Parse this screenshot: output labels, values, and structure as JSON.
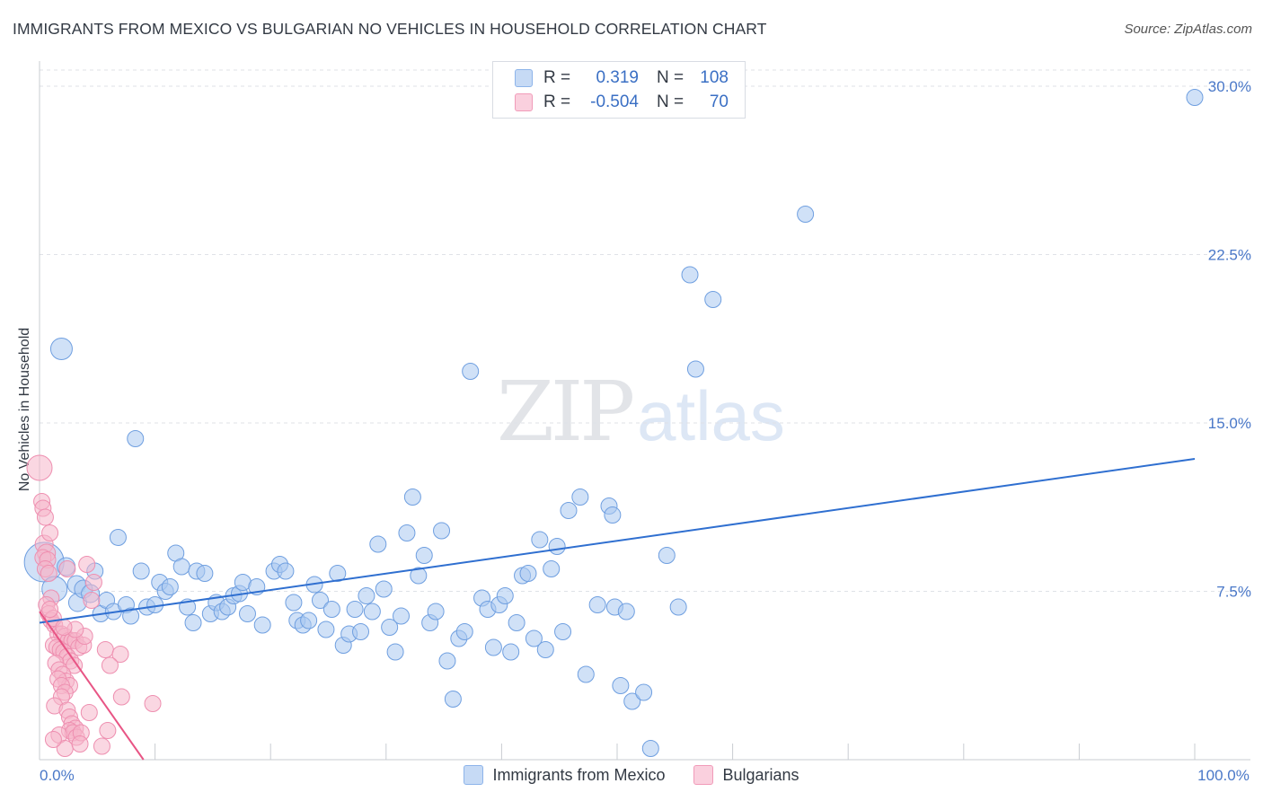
{
  "title": "IMMIGRANTS FROM MEXICO VS BULGARIAN NO VEHICLES IN HOUSEHOLD CORRELATION CHART",
  "source": "Source: ZipAtlas.com",
  "watermark": {
    "zip": "ZIP",
    "atlas": "atlas"
  },
  "legend": {
    "rows": [
      {
        "r_label": "R =",
        "r_value": "0.319",
        "n_label": "N =",
        "n_value": "108",
        "color": "#a9c8f0"
      },
      {
        "r_label": "R =",
        "r_value": "-0.504",
        "n_label": "N =",
        "n_value": "70",
        "color": "#f6b6cb"
      }
    ]
  },
  "bottom_legend": [
    "Immigrants from Mexico",
    "Bulgarians"
  ],
  "chart_data": {
    "type": "scatter",
    "ylabel": "No Vehicles in Household",
    "xlabel": "",
    "xlim": [
      0,
      100
    ],
    "ylim": [
      0,
      30
    ],
    "y_ticks": [
      {
        "value": 7.5,
        "label": "7.5%"
      },
      {
        "value": 15.0,
        "label": "15.0%"
      },
      {
        "value": 22.5,
        "label": "22.5%"
      },
      {
        "value": 30.0,
        "label": "30.0%"
      }
    ],
    "x_ticks": [
      {
        "value": 0,
        "label": "0.0%"
      },
      {
        "value": 100,
        "label": "100.0%"
      }
    ],
    "series": [
      {
        "name": "Immigrants from Mexico",
        "color": "#a9c8f0",
        "stroke": "#6f9fe0",
        "trend": {
          "x": [
            0,
            100
          ],
          "y": [
            6.1,
            13.4
          ],
          "color": "#2f6fd0"
        },
        "points": [
          [
            0.4,
            8.8,
            22
          ],
          [
            1.3,
            7.6,
            14
          ],
          [
            1.9,
            18.3,
            12
          ],
          [
            2.3,
            8.6,
            10
          ],
          [
            3.2,
            7.8,
            10
          ],
          [
            3.3,
            7.0,
            10
          ],
          [
            3.8,
            7.6,
            10
          ],
          [
            4.4,
            7.4,
            10
          ],
          [
            4.8,
            8.4,
            9
          ],
          [
            5.3,
            6.5,
            9
          ],
          [
            5.8,
            7.1,
            9
          ],
          [
            6.4,
            6.6,
            9
          ],
          [
            6.8,
            9.9,
            9
          ],
          [
            7.5,
            6.9,
            9
          ],
          [
            7.9,
            6.4,
            9
          ],
          [
            8.3,
            14.3,
            9
          ],
          [
            8.8,
            8.4,
            9
          ],
          [
            9.3,
            6.8,
            9
          ],
          [
            10.0,
            6.9,
            9
          ],
          [
            10.4,
            7.9,
            9
          ],
          [
            10.9,
            7.5,
            9
          ],
          [
            11.3,
            7.7,
            9
          ],
          [
            11.8,
            9.2,
            9
          ],
          [
            12.3,
            8.6,
            9
          ],
          [
            12.8,
            6.8,
            9
          ],
          [
            13.3,
            6.1,
            9
          ],
          [
            13.6,
            8.4,
            9
          ],
          [
            14.3,
            8.3,
            9
          ],
          [
            14.8,
            6.5,
            9
          ],
          [
            15.3,
            7.0,
            9
          ],
          [
            15.8,
            6.6,
            9
          ],
          [
            16.3,
            6.8,
            9
          ],
          [
            16.8,
            7.3,
            9
          ],
          [
            17.3,
            7.4,
            9
          ],
          [
            17.6,
            7.9,
            9
          ],
          [
            18.0,
            6.5,
            9
          ],
          [
            18.8,
            7.7,
            9
          ],
          [
            19.3,
            6.0,
            9
          ],
          [
            20.3,
            8.4,
            9
          ],
          [
            20.8,
            8.7,
            9
          ],
          [
            21.3,
            8.4,
            9
          ],
          [
            22.0,
            7.0,
            9
          ],
          [
            22.3,
            6.2,
            9
          ],
          [
            22.8,
            6.0,
            9
          ],
          [
            23.3,
            6.2,
            9
          ],
          [
            23.8,
            7.8,
            9
          ],
          [
            24.3,
            7.1,
            9
          ],
          [
            24.8,
            5.8,
            9
          ],
          [
            25.3,
            6.7,
            9
          ],
          [
            25.8,
            8.3,
            9
          ],
          [
            26.3,
            5.1,
            9
          ],
          [
            26.8,
            5.6,
            9
          ],
          [
            27.3,
            6.7,
            9
          ],
          [
            27.8,
            5.7,
            9
          ],
          [
            28.3,
            7.3,
            9
          ],
          [
            28.8,
            6.6,
            9
          ],
          [
            29.3,
            9.6,
            9
          ],
          [
            29.8,
            7.6,
            9
          ],
          [
            30.3,
            5.9,
            9
          ],
          [
            30.8,
            4.8,
            9
          ],
          [
            31.3,
            6.4,
            9
          ],
          [
            31.8,
            10.1,
            9
          ],
          [
            32.3,
            11.7,
            9
          ],
          [
            32.8,
            8.2,
            9
          ],
          [
            33.3,
            9.1,
            9
          ],
          [
            33.8,
            6.1,
            9
          ],
          [
            34.3,
            6.6,
            9
          ],
          [
            34.8,
            10.2,
            9
          ],
          [
            35.3,
            4.4,
            9
          ],
          [
            35.8,
            2.7,
            9
          ],
          [
            36.3,
            5.4,
            9
          ],
          [
            36.8,
            5.7,
            9
          ],
          [
            37.3,
            17.3,
            9
          ],
          [
            38.3,
            7.2,
            9
          ],
          [
            38.8,
            6.7,
            9
          ],
          [
            39.3,
            5.0,
            9
          ],
          [
            39.8,
            6.9,
            9
          ],
          [
            40.3,
            7.3,
            9
          ],
          [
            40.8,
            4.8,
            9
          ],
          [
            41.3,
            6.1,
            9
          ],
          [
            41.8,
            8.2,
            9
          ],
          [
            42.3,
            8.3,
            9
          ],
          [
            42.8,
            5.4,
            9
          ],
          [
            43.3,
            9.8,
            9
          ],
          [
            43.8,
            4.9,
            9
          ],
          [
            44.3,
            8.5,
            9
          ],
          [
            44.8,
            9.5,
            9
          ],
          [
            45.3,
            5.7,
            9
          ],
          [
            45.8,
            11.1,
            9
          ],
          [
            46.8,
            11.7,
            9
          ],
          [
            47.3,
            3.8,
            9
          ],
          [
            48.3,
            6.9,
            9
          ],
          [
            49.3,
            11.3,
            9
          ],
          [
            49.6,
            10.9,
            9
          ],
          [
            49.8,
            6.8,
            9
          ],
          [
            50.3,
            3.3,
            9
          ],
          [
            50.8,
            6.6,
            9
          ],
          [
            51.3,
            2.6,
            9
          ],
          [
            52.3,
            3.0,
            9
          ],
          [
            52.9,
            0.5,
            9
          ],
          [
            54.3,
            9.1,
            9
          ],
          [
            55.3,
            6.8,
            9
          ],
          [
            56.3,
            21.6,
            9
          ],
          [
            56.8,
            17.4,
            9
          ],
          [
            58.3,
            20.5,
            9
          ],
          [
            66.3,
            24.3,
            9
          ],
          [
            100.0,
            29.5,
            9
          ]
        ]
      },
      {
        "name": "Bulgarians",
        "color": "#f6b6cb",
        "stroke": "#ee8fb0",
        "trend": {
          "x": [
            0,
            9.0
          ],
          "y": [
            6.6,
            0
          ],
          "color": "#e85585"
        },
        "points": [
          [
            0.0,
            13.0,
            14
          ],
          [
            0.2,
            11.5,
            9
          ],
          [
            0.3,
            11.2,
            9
          ],
          [
            0.5,
            10.8,
            9
          ],
          [
            0.4,
            9.6,
            10
          ],
          [
            0.6,
            9.2,
            10
          ],
          [
            0.3,
            9.0,
            9
          ],
          [
            0.9,
            10.1,
            9
          ],
          [
            0.7,
            8.9,
            9
          ],
          [
            0.5,
            8.5,
            9
          ],
          [
            0.8,
            8.3,
            9
          ],
          [
            1.0,
            7.2,
            9
          ],
          [
            0.6,
            6.9,
            9
          ],
          [
            0.8,
            6.5,
            9
          ],
          [
            1.0,
            6.2,
            9
          ],
          [
            1.3,
            6.0,
            9
          ],
          [
            1.6,
            5.6,
            9
          ],
          [
            1.9,
            5.6,
            9
          ],
          [
            2.2,
            5.5,
            9
          ],
          [
            2.5,
            5.3,
            9
          ],
          [
            2.8,
            5.3,
            9
          ],
          [
            3.1,
            5.3,
            9
          ],
          [
            3.4,
            5.0,
            9
          ],
          [
            3.8,
            5.1,
            9
          ],
          [
            1.2,
            5.1,
            9
          ],
          [
            1.5,
            5.0,
            9
          ],
          [
            1.8,
            4.9,
            9
          ],
          [
            2.1,
            4.8,
            9
          ],
          [
            2.4,
            4.6,
            9
          ],
          [
            2.7,
            4.4,
            9
          ],
          [
            3.0,
            4.2,
            9
          ],
          [
            1.4,
            4.3,
            9
          ],
          [
            1.7,
            4.0,
            9
          ],
          [
            2.0,
            3.8,
            9
          ],
          [
            2.3,
            3.5,
            9
          ],
          [
            2.6,
            3.3,
            9
          ],
          [
            1.6,
            3.6,
            9
          ],
          [
            1.9,
            3.3,
            9
          ],
          [
            2.2,
            3.0,
            9
          ],
          [
            1.9,
            2.8,
            9
          ],
          [
            1.3,
            2.4,
            9
          ],
          [
            2.4,
            2.2,
            9
          ],
          [
            2.6,
            1.9,
            9
          ],
          [
            2.8,
            1.6,
            9
          ],
          [
            3.1,
            1.4,
            9
          ],
          [
            2.6,
            1.3,
            9
          ],
          [
            2.9,
            1.2,
            9
          ],
          [
            3.2,
            1.0,
            9
          ],
          [
            3.6,
            1.2,
            9
          ],
          [
            1.7,
            1.1,
            9
          ],
          [
            2.2,
            0.5,
            9
          ],
          [
            1.2,
            0.9,
            9
          ],
          [
            3.5,
            0.7,
            9
          ],
          [
            5.4,
            0.6,
            9
          ],
          [
            5.9,
            1.3,
            9
          ],
          [
            4.3,
            2.1,
            9
          ],
          [
            7.1,
            2.8,
            9
          ],
          [
            9.8,
            2.5,
            9
          ],
          [
            5.7,
            4.9,
            9
          ],
          [
            7.0,
            4.7,
            9
          ],
          [
            4.5,
            7.1,
            9
          ],
          [
            4.1,
            8.7,
            9
          ],
          [
            4.7,
            7.9,
            9
          ],
          [
            2.4,
            8.5,
            9
          ],
          [
            3.9,
            5.5,
            9
          ],
          [
            1.2,
            6.3,
            9
          ],
          [
            3.1,
            5.8,
            9
          ],
          [
            0.9,
            6.7,
            9
          ],
          [
            2.1,
            5.9,
            9
          ],
          [
            6.1,
            4.2,
            9
          ]
        ]
      }
    ]
  }
}
